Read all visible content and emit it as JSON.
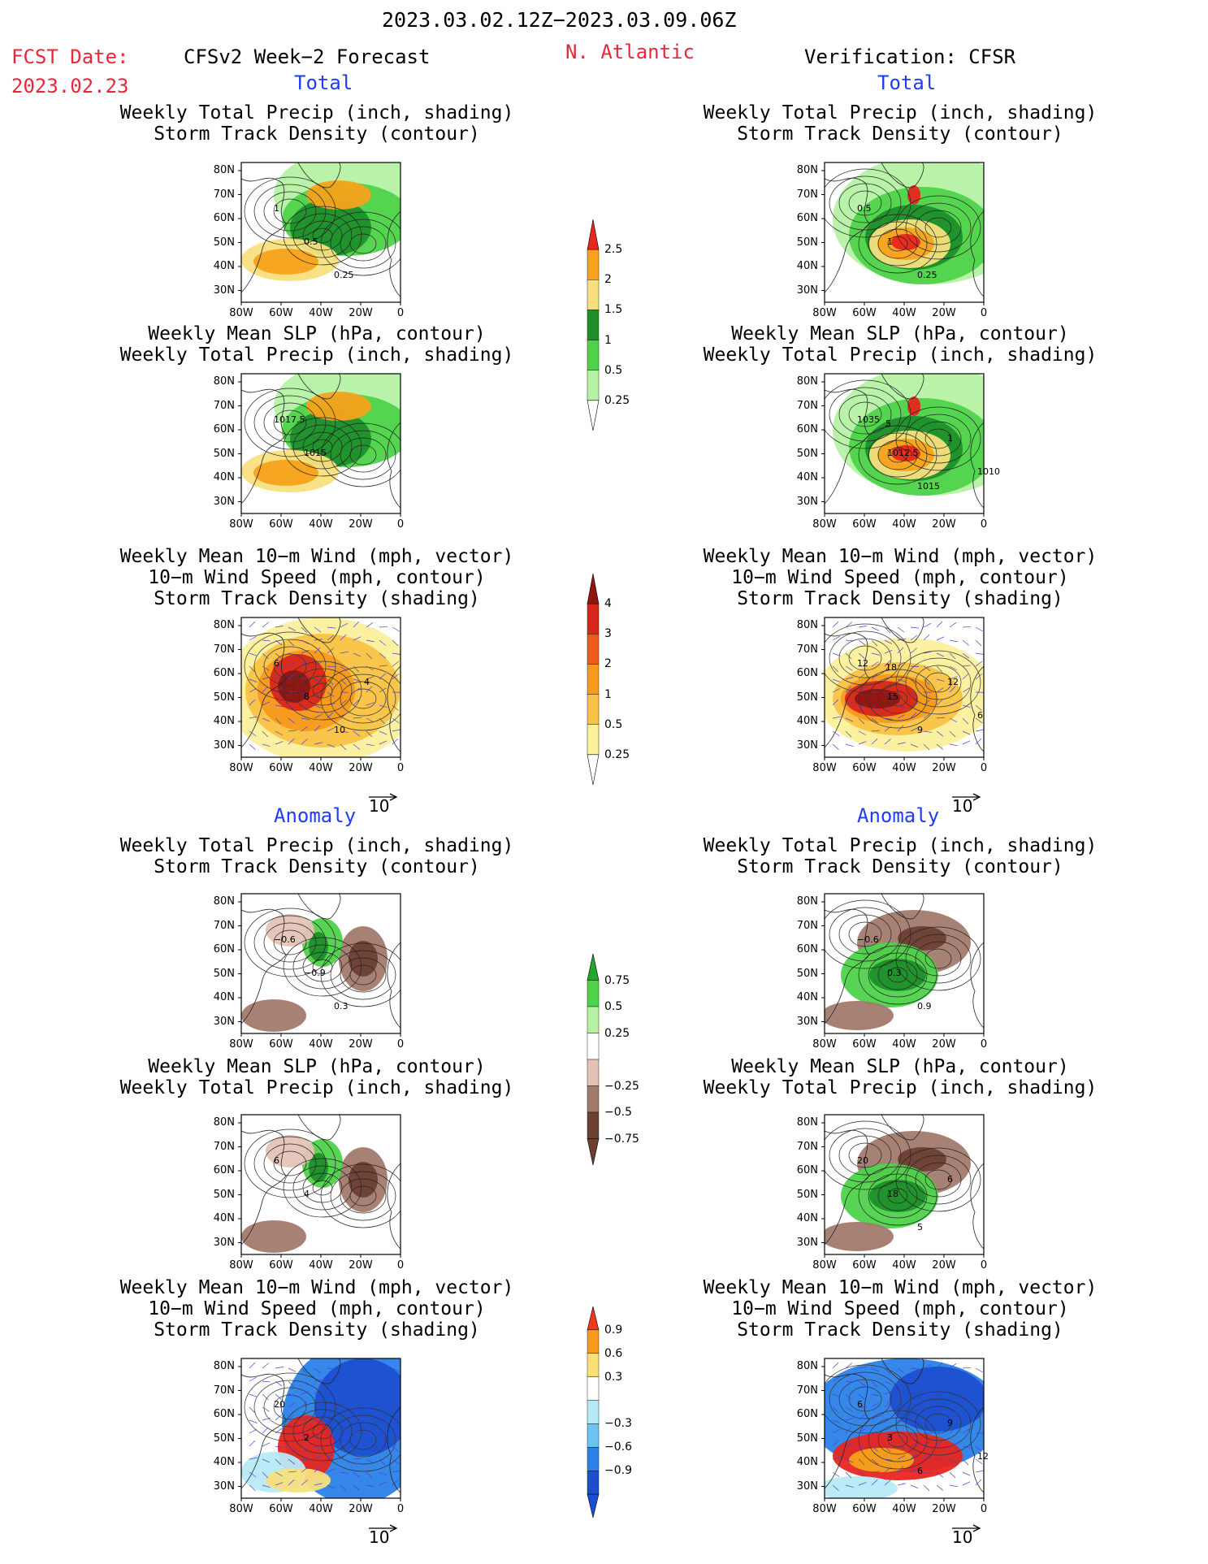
{
  "header": {
    "date_range": "2023.03.02.12Z−2023.03.09.06Z",
    "fcst_label": "FCST Date:",
    "fcst_date": "2023.02.23",
    "region": "N. Atlantic",
    "left_title": "CFSv2 Week−2 Forecast",
    "right_title": "Verification: CFSR"
  },
  "sections": {
    "total": "Total",
    "anomaly": "Anomaly"
  },
  "panel_titles": {
    "precip_storm": "Weekly Total Precip (inch, shading)\nStorm Track Density (contour)",
    "slp_precip": "Weekly Mean SLP (hPa, contour)\nWeekly Total Precip (inch, shading)",
    "wind_storm": "Weekly Mean 10−m Wind (mph, vector)\n10−m Wind Speed (mph, contour)\nStorm Track Density (shading)"
  },
  "axes": {
    "lat_labels": [
      "80N",
      "70N",
      "60N",
      "50N",
      "40N",
      "30N"
    ],
    "lon_labels": [
      "80W",
      "60W",
      "40W",
      "20W",
      "0"
    ]
  },
  "vector_reference": "10",
  "colorbars": [
    {
      "name": "precip-total",
      "labels": [
        "2.5",
        "2",
        "1.5",
        "1",
        "0.5",
        "0.25"
      ],
      "colors": [
        "#e8251f",
        "#f7a21b",
        "#f8e07e",
        "#1f8f2a",
        "#4ed24a",
        "#b5f2a4"
      ]
    },
    {
      "name": "storm-total",
      "labels": [
        "4",
        "3",
        "2",
        "1",
        "0.5",
        "0.25"
      ],
      "colors": [
        "#8e1512",
        "#d8261a",
        "#f05a17",
        "#f79a1e",
        "#f9c247",
        "#fbf09c"
      ]
    },
    {
      "name": "precip-anomaly",
      "labels": [
        "0.75",
        "0.5",
        "0.25",
        "−0.25",
        "−0.5",
        "−0.75"
      ],
      "colors": [
        "#1fa82d",
        "#4ed24a",
        "#b5f2a4",
        "#ffffff",
        "#e5c2b6",
        "#a27a6b",
        "#6b4033"
      ]
    },
    {
      "name": "storm-anomaly",
      "labels": [
        "0.9",
        "0.6",
        "0.3",
        "−0.3",
        "−0.6",
        "−0.9"
      ],
      "colors": [
        "#ee3a1c",
        "#f99a1e",
        "#fbe073",
        "#ffffff",
        "#b6eaf6",
        "#6fc3f0",
        "#2a82e8",
        "#1c4fd0"
      ]
    }
  ],
  "contour_labels": {
    "r1_left": [
      "1",
      "0.5",
      "0.25"
    ],
    "r1_right": [
      "0.5",
      "1",
      "0.25"
    ],
    "r2_left": [
      "1017.5",
      "1015"
    ],
    "r2_right": [
      "1035",
      "1012.5",
      "1015",
      "1",
      "1010",
      "5"
    ],
    "r3_left": [
      "6",
      "8",
      "10",
      "4"
    ],
    "r3_right": [
      "12",
      "15",
      "9",
      "12",
      "6",
      "18"
    ],
    "r4_left": [
      "−0.6",
      "−0.9",
      "0.3"
    ],
    "r4_right": [
      "−0.6",
      "0.3",
      "0.9"
    ],
    "r5_left": [
      "6",
      "4"
    ],
    "r5_right": [
      "20",
      "18",
      "5",
      "6"
    ],
    "r6_left": [
      "20",
      "2"
    ],
    "r6_right": [
      "6",
      "3",
      "6",
      "9",
      "12"
    ]
  },
  "colors": {
    "title_red": "#e8283a",
    "title_blue": "#1f3cf0",
    "vector_blue": "#4a3fd0"
  }
}
